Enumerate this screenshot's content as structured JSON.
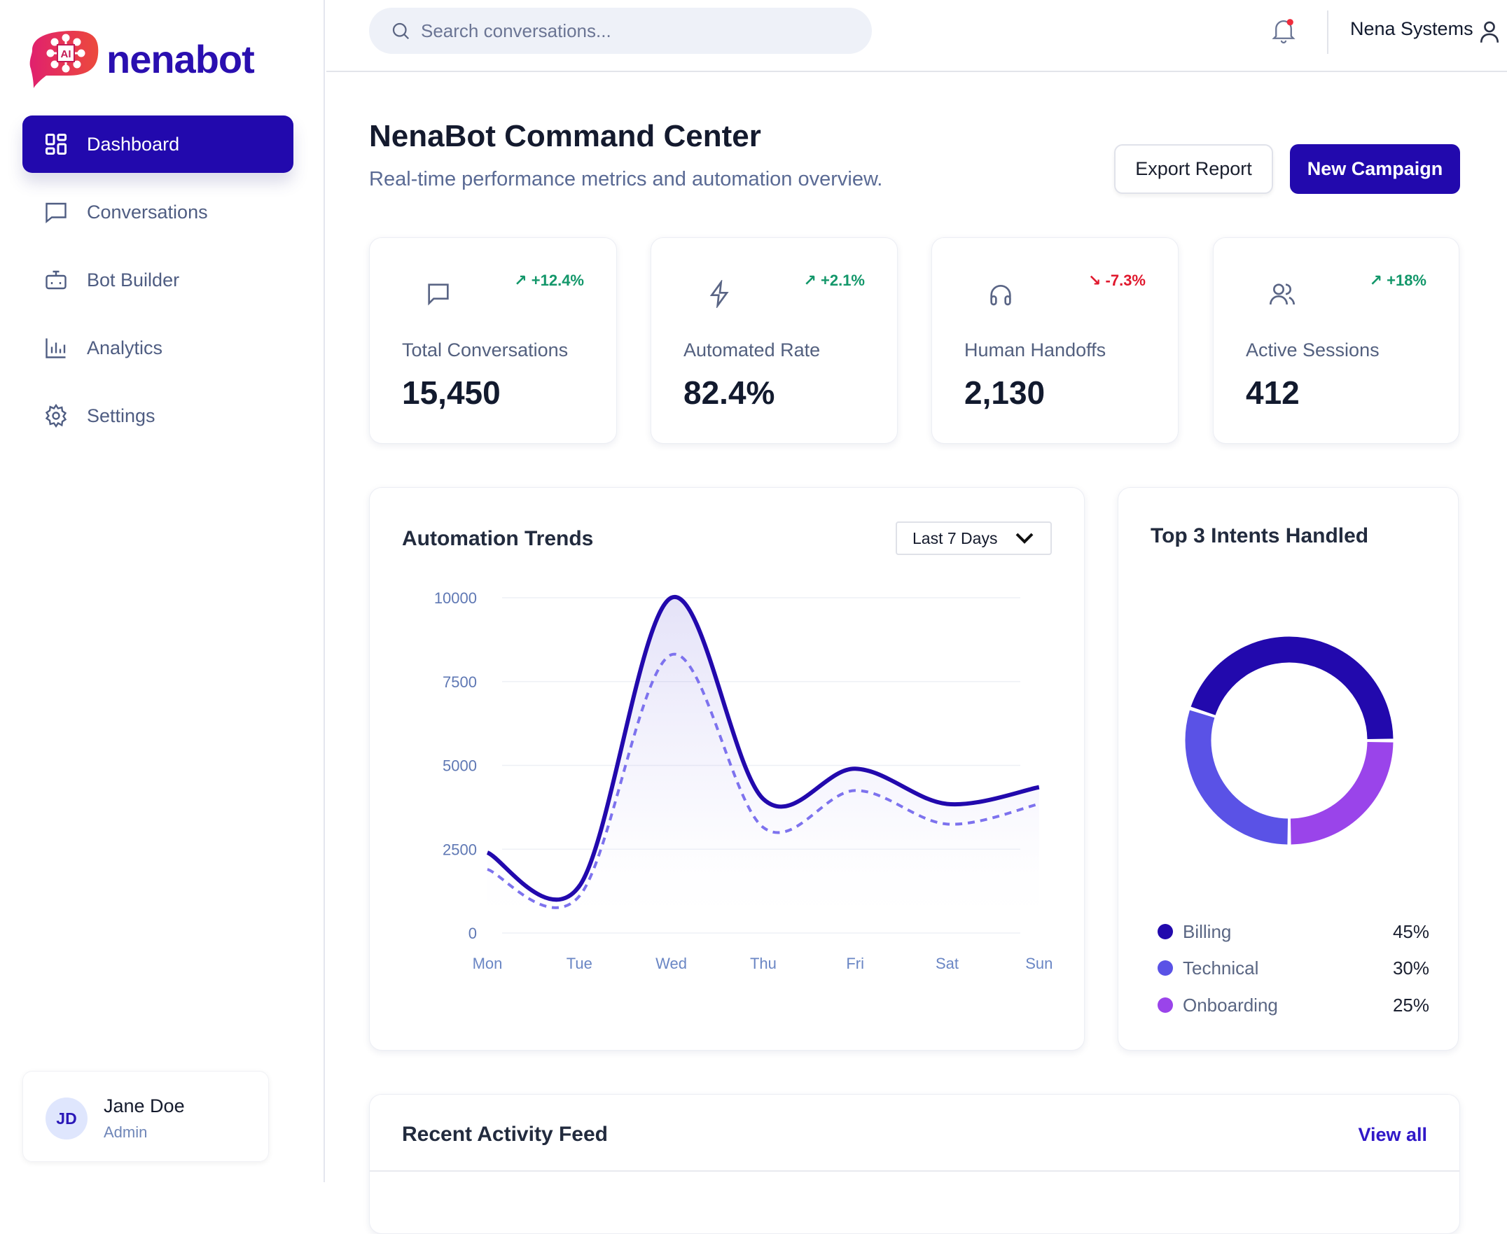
{
  "brand": {
    "name": "nenabot",
    "badge": "AI"
  },
  "sidebar": {
    "items": [
      {
        "label": "Dashboard",
        "icon": "dashboard-grid-icon",
        "active": true
      },
      {
        "label": "Conversations",
        "icon": "chat-bubble-icon"
      },
      {
        "label": "Bot Builder",
        "icon": "bot-icon"
      },
      {
        "label": "Analytics",
        "icon": "bar-chart-icon"
      },
      {
        "label": "Settings",
        "icon": "gear-icon"
      }
    ],
    "user": {
      "initials": "JD",
      "name": "Jane Doe",
      "role": "Admin"
    }
  },
  "header": {
    "search_placeholder": "Search conversations...",
    "org": "Nena Systems"
  },
  "page": {
    "title": "NenaBot Command Center",
    "subtitle": "Real-time performance metrics and automation overview.",
    "export_label": "Export Report",
    "new_label": "New Campaign"
  },
  "stats": [
    {
      "label": "Total Conversations",
      "value": "15,450",
      "change": "+12.4%",
      "trend": "up",
      "icon": "chat-bubble-icon"
    },
    {
      "label": "Automated Rate",
      "value": "82.4%",
      "change": "+2.1%",
      "trend": "up",
      "icon": "lightning-icon"
    },
    {
      "label": "Human Handoffs",
      "value": "2,130",
      "change": "-7.3%",
      "trend": "down",
      "icon": "headphones-icon"
    },
    {
      "label": "Active Sessions",
      "value": "412",
      "change": "+18%",
      "trend": "up",
      "icon": "users-icon"
    }
  ],
  "colors": {
    "primary": "#2209ad",
    "technical": "#5a52e6",
    "onboarding": "#9a44ea",
    "up": "#13976a",
    "down": "#e0182d"
  },
  "chart_data": [
    {
      "type": "line",
      "title": "Automation Trends",
      "range_label": "Last 7 Days",
      "categories": [
        "Mon",
        "Tue",
        "Wed",
        "Thu",
        "Fri",
        "Sat",
        "Sun"
      ],
      "yticks": [
        "0",
        "2500",
        "5000",
        "7500",
        "10000"
      ],
      "ylim": [
        0,
        10000
      ],
      "grid": true,
      "series": [
        {
          "style": "solid",
          "values": [
            2400,
            1400,
            10000,
            4000,
            4900,
            3850,
            4350
          ]
        },
        {
          "style": "dashed",
          "values": [
            1900,
            1100,
            8300,
            3150,
            4250,
            3250,
            3850
          ]
        }
      ]
    },
    {
      "type": "pie",
      "title": "Top 3 Intents Handled",
      "donut": true,
      "labels": [
        "Billing",
        "Technical",
        "Onboarding"
      ],
      "values": [
        45,
        30,
        25
      ],
      "value_labels": [
        "45%",
        "30%",
        "25%"
      ],
      "colors": [
        "#2209ad",
        "#5a52e6",
        "#9a44ea"
      ]
    }
  ],
  "activity": {
    "title": "Recent Activity Feed",
    "view_all": "View all"
  }
}
